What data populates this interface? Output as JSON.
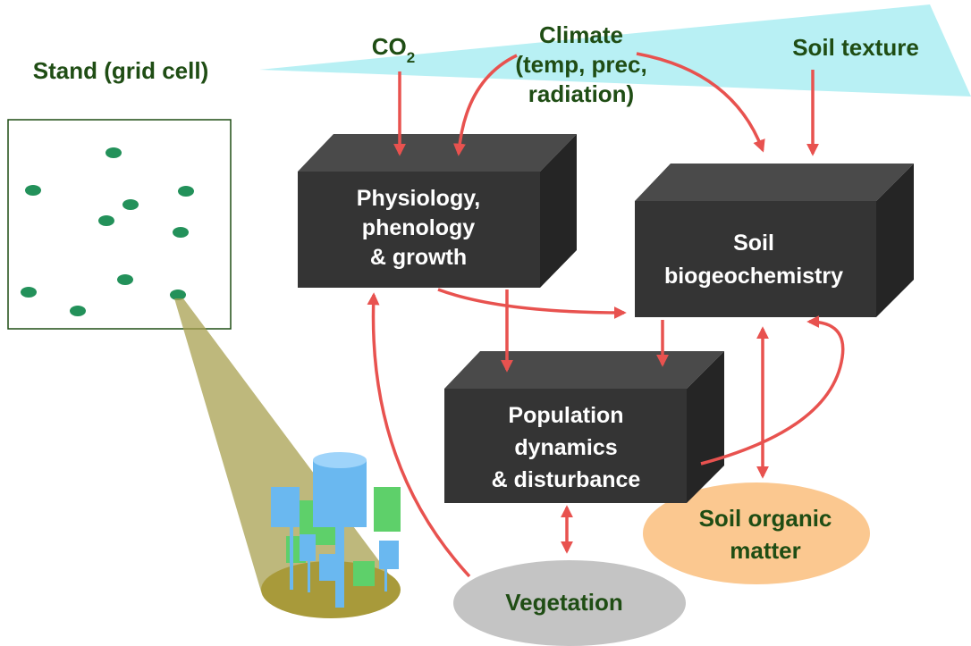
{
  "stand_label": "Stand (grid cell)",
  "drivers": {
    "co2": {
      "text": "CO",
      "subscript": "2"
    },
    "climate": [
      "Climate",
      "(temp, prec,",
      "radiation)"
    ],
    "soil_texture": "Soil texture"
  },
  "boxes": [
    {
      "lines": [
        "Physiology,",
        "phenology",
        "& growth"
      ]
    },
    {
      "lines": [
        "Soil",
        "biogeochemistry"
      ]
    },
    {
      "lines": [
        "Population",
        "dynamics",
        "& disturbance"
      ]
    }
  ],
  "pools": [
    {
      "lines": [
        "Soil organic",
        "matter"
      ]
    },
    {
      "lines": [
        "Vegetation"
      ]
    }
  ]
}
